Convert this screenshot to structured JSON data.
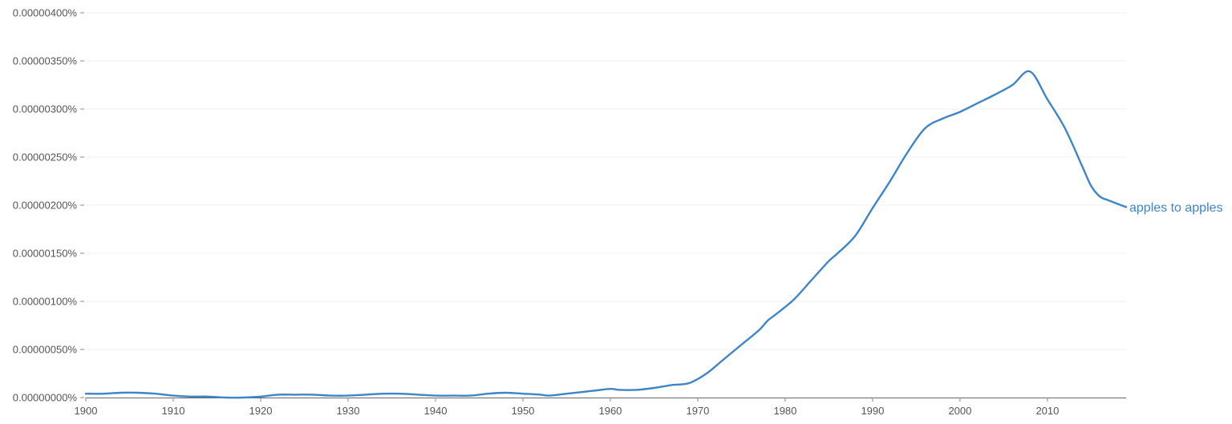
{
  "chart_data": {
    "type": "line",
    "title": "",
    "xlabel": "",
    "ylabel": "",
    "xlim": [
      1900,
      2019
    ],
    "ylim": [
      0,
      4e-06
    ],
    "grid": true,
    "legend": "inline-right",
    "x_ticks": [
      1900,
      1910,
      1920,
      1930,
      1940,
      1950,
      1960,
      1970,
      1980,
      1990,
      2000,
      2010
    ],
    "x_tick_labels": [
      "1900",
      "1910",
      "1920",
      "1930",
      "1940",
      "1950",
      "1960",
      "1970",
      "1980",
      "1990",
      "2000",
      "2010"
    ],
    "y_ticks": [
      0,
      5e-07,
      1e-06,
      1.5e-06,
      2e-06,
      2.5e-06,
      3e-06,
      3.5e-06,
      4e-06
    ],
    "y_tick_labels": [
      "0.00000000%",
      "0.00000050%",
      "0.00000100%",
      "0.00000150%",
      "0.00000200%",
      "0.00000250%",
      "0.00000300%",
      "0.00000350%",
      "0.00000400%"
    ],
    "series": [
      {
        "name": "apples to apples",
        "color": "#3d85c6",
        "x": [
          1900,
          1902,
          1904,
          1906,
          1908,
          1910,
          1912,
          1914,
          1916,
          1918,
          1920,
          1922,
          1924,
          1926,
          1928,
          1930,
          1932,
          1934,
          1936,
          1938,
          1940,
          1942,
          1944,
          1946,
          1948,
          1950,
          1952,
          1953,
          1955,
          1958,
          1960,
          1961,
          1963,
          1965,
          1967,
          1969,
          1971,
          1973,
          1975,
          1977,
          1978,
          1979,
          1981,
          1983,
          1985,
          1986,
          1988,
          1990,
          1992,
          1994,
          1996,
          1998,
          2000,
          2002,
          2004,
          2006,
          2008,
          2010,
          2012,
          2014,
          2015,
          2016,
          2017,
          2019
        ],
        "y": [
          4e-08,
          4e-08,
          5e-08,
          5e-08,
          4e-08,
          2e-08,
          1e-08,
          1e-08,
          0.0,
          0.0,
          1e-08,
          3e-08,
          3e-08,
          3e-08,
          2e-08,
          2e-08,
          3e-08,
          4e-08,
          4e-08,
          3e-08,
          2e-08,
          2e-08,
          2e-08,
          4e-08,
          5e-08,
          4e-08,
          3e-08,
          2e-08,
          4e-08,
          7e-08,
          9e-08,
          8e-08,
          8e-08,
          1e-07,
          1.3e-07,
          1.5e-07,
          2.5e-07,
          4e-07,
          5.5e-07,
          7e-07,
          8e-07,
          8.7e-07,
          1.02e-06,
          1.22e-06,
          1.42e-06,
          1.5e-06,
          1.68e-06,
          1.97e-06,
          2.25e-06,
          2.55e-06,
          2.8e-06,
          2.9e-06,
          2.97e-06,
          3.06e-06,
          3.15e-06,
          3.25e-06,
          3.39e-06,
          3.1e-06,
          2.8e-06,
          2.4e-06,
          2.2e-06,
          2.09e-06,
          2.05e-06,
          1.98e-06
        ]
      }
    ]
  }
}
